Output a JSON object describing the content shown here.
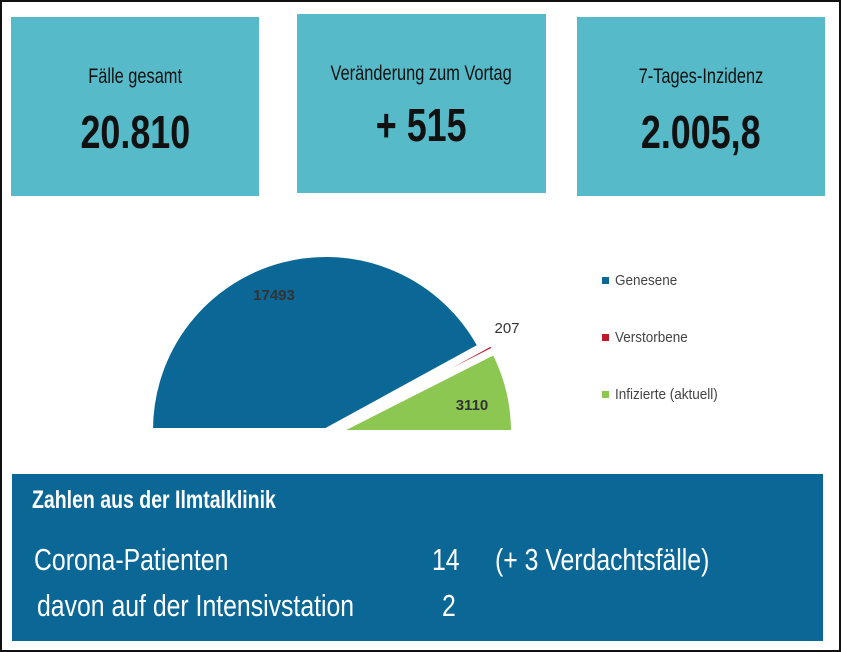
{
  "kpis": [
    {
      "label": "Fälle gesamt",
      "value": "20.810"
    },
    {
      "label": "Veränderung zum Vortag",
      "value": "+ 515"
    },
    {
      "label": "7-Tages-Inzidenz",
      "value": "2.005,8"
    }
  ],
  "chart_data": {
    "type": "pie",
    "variant": "half-pie",
    "categories": [
      "Genesene",
      "Verstorbene",
      "Infizierte (aktuell)"
    ],
    "values": [
      17493,
      207,
      3110
    ],
    "colors": [
      "#0a6796",
      "#c0182a",
      "#8bc751"
    ],
    "data_labels": [
      "17493",
      "207",
      "3110"
    ],
    "legend_position": "right"
  },
  "clinic": {
    "title": "Zahlen aus der Ilmtalklinik",
    "rows": [
      {
        "label": "Corona-Patienten",
        "value": "14",
        "note": "(+ 3 Verdachtsfälle)"
      },
      {
        "label": "davon auf der Intensivstation",
        "value": "2"
      }
    ]
  }
}
